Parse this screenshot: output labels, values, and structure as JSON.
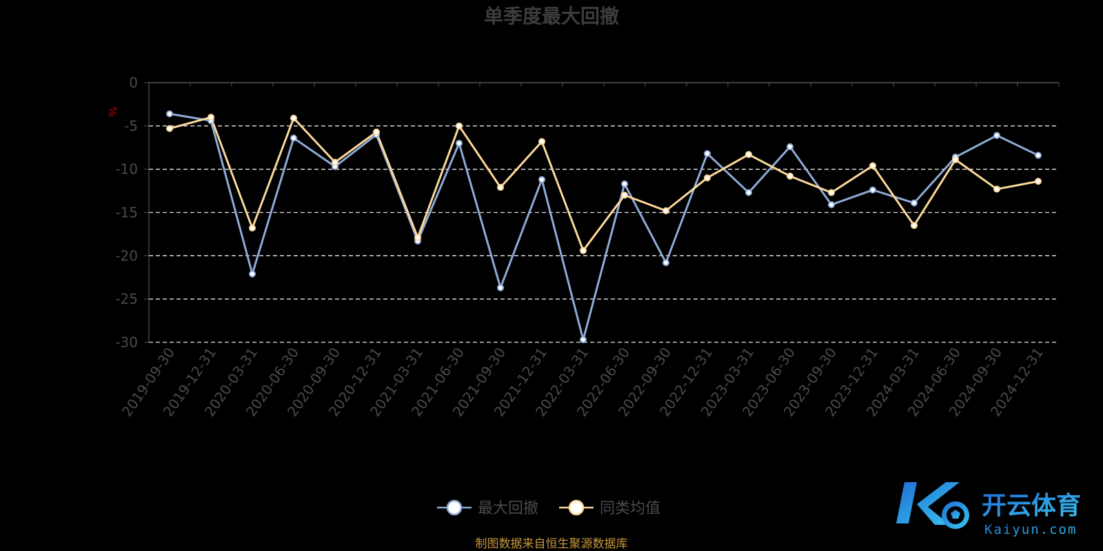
{
  "chart_data": {
    "type": "line",
    "title": "单季度最大回撤",
    "ylabel": "%",
    "ylim": [
      -30,
      0
    ],
    "yticks": [
      0,
      -5,
      -10,
      -15,
      -20,
      -25,
      -30
    ],
    "grid": true,
    "legend_position": "bottom-center",
    "categories": [
      "2019-09-30",
      "2019-12-31",
      "2020-03-31",
      "2020-06-30",
      "2020-09-30",
      "2020-12-31",
      "2021-03-31",
      "2021-06-30",
      "2021-09-30",
      "2021-12-31",
      "2022-03-31",
      "2022-06-30",
      "2022-09-30",
      "2022-12-31",
      "2023-03-31",
      "2023-06-30",
      "2023-09-30",
      "2023-12-31",
      "2024-03-31",
      "2024-06-30",
      "2024-09-30",
      "2024-12-31"
    ],
    "series": [
      {
        "name": "最大回撤",
        "color": "#8eabd8",
        "values": [
          -3.6,
          -4.4,
          -22.1,
          -6.4,
          -9.7,
          -6.0,
          -18.3,
          -7.0,
          -23.7,
          -11.2,
          -29.7,
          -11.7,
          -20.8,
          -8.2,
          -12.7,
          -7.4,
          -14.1,
          -12.4,
          -13.9,
          -8.6,
          -6.1,
          -8.4
        ]
      },
      {
        "name": "同类均值",
        "color": "#fcd99a",
        "values": [
          -5.3,
          -4.0,
          -16.8,
          -4.1,
          -9.2,
          -5.7,
          -17.9,
          -5.0,
          -12.1,
          -6.8,
          -19.4,
          -13.0,
          -14.8,
          -11.0,
          -8.3,
          -10.8,
          -12.7,
          -9.6,
          -16.5,
          -8.9,
          -12.3,
          -11.4
        ]
      }
    ]
  },
  "source_note": "制图数据来自恒生聚源数据库",
  "watermark": {
    "cn": "开云体育",
    "en": "Kaiyun.com",
    "color_start": "#1f6fd6",
    "color_end": "#39c6f0"
  }
}
